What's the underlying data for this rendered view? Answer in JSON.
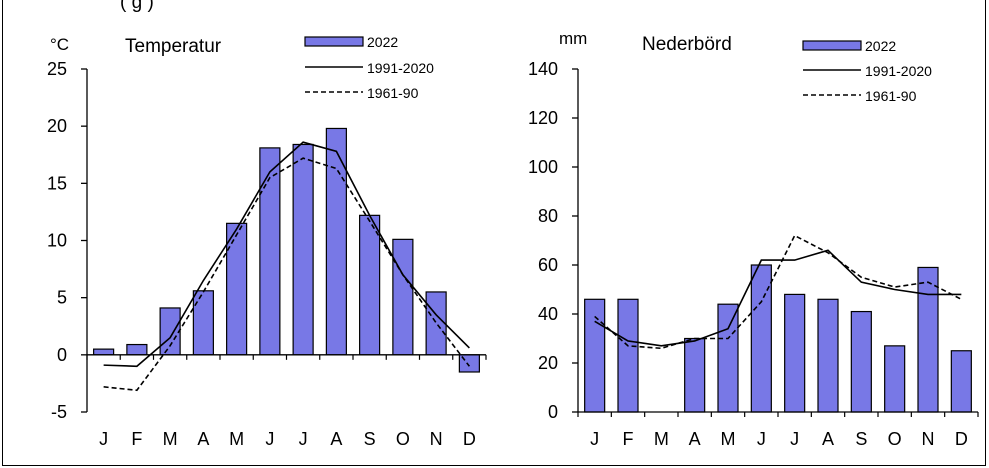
{
  "header_fragment": "(                                       g     )",
  "chart_data": [
    {
      "type": "bar",
      "title": "Temperatur",
      "ylabel": "°C",
      "categories": [
        "J",
        "F",
        "M",
        "A",
        "M",
        "J",
        "J",
        "A",
        "S",
        "O",
        "N",
        "D"
      ],
      "ylim": [
        -5,
        25
      ],
      "yticks": [
        -5,
        0,
        5,
        10,
        15,
        20,
        25
      ],
      "series": [
        {
          "name": "2022",
          "kind": "bar",
          "values": [
            0.5,
            0.9,
            4.1,
            5.6,
            11.5,
            18.1,
            18.4,
            19.8,
            12.2,
            10.1,
            5.5,
            -1.5
          ]
        },
        {
          "name": "1991-2020",
          "kind": "line",
          "style": "solid",
          "values": [
            -0.9,
            -1.0,
            1.5,
            6.5,
            11.0,
            16.0,
            18.6,
            17.8,
            12.2,
            7.0,
            3.5,
            0.6
          ]
        },
        {
          "name": "1961-90",
          "kind": "line",
          "style": "dashed",
          "values": [
            -2.8,
            -3.1,
            0.8,
            5.5,
            10.5,
            15.5,
            17.2,
            16.3,
            11.7,
            7.0,
            2.8,
            -1.0
          ]
        }
      ],
      "legend_position": "top-right",
      "grid": false,
      "bar_color": "#7878E6"
    },
    {
      "type": "bar",
      "title": "Nederbörd",
      "ylabel": "mm",
      "categories": [
        "J",
        "F",
        "M",
        "A",
        "M",
        "J",
        "J",
        "A",
        "S",
        "O",
        "N",
        "D"
      ],
      "ylim": [
        0,
        140
      ],
      "yticks": [
        0,
        20,
        40,
        60,
        80,
        100,
        120,
        140
      ],
      "series": [
        {
          "name": "2022",
          "kind": "bar",
          "values": [
            46,
            46,
            0,
            30,
            44,
            60,
            48,
            46,
            41,
            27,
            59,
            25
          ]
        },
        {
          "name": "1991-2020",
          "kind": "line",
          "style": "solid",
          "values": [
            37,
            29,
            27,
            29,
            34,
            62,
            62,
            66,
            53,
            50,
            48,
            48
          ]
        },
        {
          "name": "1961-90",
          "kind": "line",
          "style": "dashed",
          "values": [
            39,
            27,
            26,
            30,
            30,
            45,
            72,
            65,
            55,
            51,
            53,
            46
          ]
        }
      ],
      "legend_position": "top-right",
      "grid": false,
      "bar_color": "#7878E6"
    }
  ]
}
